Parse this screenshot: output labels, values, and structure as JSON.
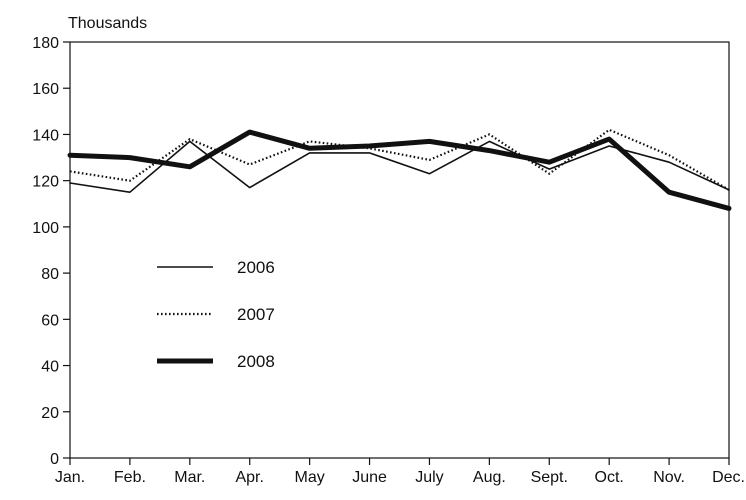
{
  "chart_data": {
    "type": "line",
    "title": "",
    "unit_label": "Thousands",
    "xlabel": "",
    "ylabel": "",
    "categories": [
      "Jan.",
      "Feb.",
      "Mar.",
      "Apr.",
      "May",
      "June",
      "July",
      "Aug.",
      "Sept.",
      "Oct.",
      "Nov.",
      "Dec."
    ],
    "ylim": [
      0,
      180
    ],
    "yticks": [
      0,
      20,
      40,
      60,
      80,
      100,
      120,
      140,
      160,
      180
    ],
    "grid": false,
    "legend_position": "center-left",
    "series": [
      {
        "name": "2006",
        "style": "thin-solid",
        "color": "#111111",
        "values": [
          119,
          115,
          137,
          117,
          132,
          132,
          123,
          137,
          125,
          135,
          128,
          116
        ]
      },
      {
        "name": "2007",
        "style": "dotted",
        "color": "#111111",
        "values": [
          124,
          120,
          138,
          127,
          137,
          134,
          129,
          140,
          123,
          142,
          131,
          116
        ]
      },
      {
        "name": "2008",
        "style": "thick-solid",
        "color": "#111111",
        "values": [
          131,
          130,
          126,
          141,
          134,
          135,
          137,
          133,
          128,
          138,
          115,
          108
        ]
      }
    ]
  }
}
